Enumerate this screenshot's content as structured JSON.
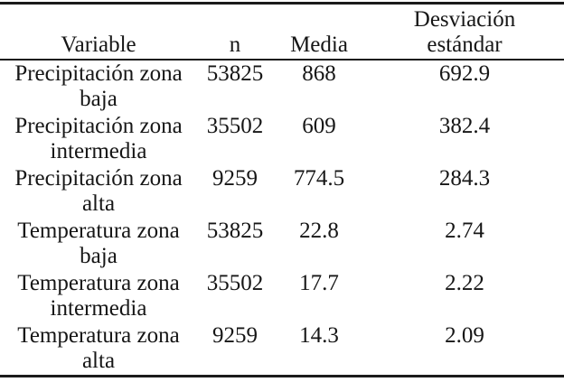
{
  "table": {
    "columns": [
      "Variable",
      "n",
      "Media",
      "Desviación estándar"
    ],
    "rows": [
      {
        "variable": "Precipitación zona baja",
        "n": "53825",
        "media": "868",
        "sd": "692.9"
      },
      {
        "variable": "Precipitación zona intermedia",
        "n": "35502",
        "media": "609",
        "sd": "382.4"
      },
      {
        "variable": "Precipitación zona alta",
        "n": "9259",
        "media": "774.5",
        "sd": "284.3"
      },
      {
        "variable": "Temperatura zona baja",
        "n": "53825",
        "media": "22.8",
        "sd": "2.74"
      },
      {
        "variable": "Temperatura zona intermedia",
        "n": "35502",
        "media": "17.7",
        "sd": "2.22"
      },
      {
        "variable": "Temperatura zona alta",
        "n": "9259",
        "media": "14.3",
        "sd": "2.09"
      }
    ]
  },
  "colors": {
    "text": "#161616",
    "rule": "#1a1a1a",
    "background": "#ffffff"
  }
}
